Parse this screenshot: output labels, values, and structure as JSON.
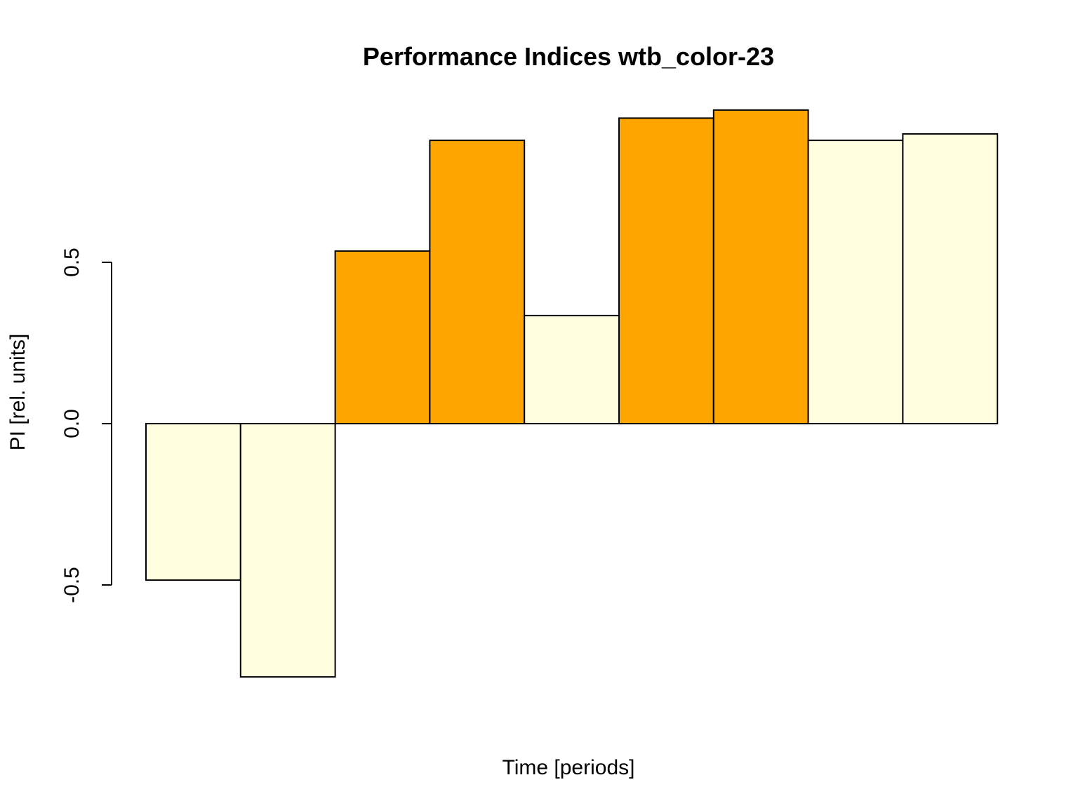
{
  "chart_data": {
    "type": "bar",
    "title": "Performance Indices wtb_color-23",
    "xlabel": "Time [periods]",
    "ylabel": "PI [rel. units]",
    "ylim": [
      -0.8,
      1.05
    ],
    "yticks": [
      -0.5,
      0.0,
      0.5
    ],
    "ytick_labels": [
      "-0.5",
      "0.0",
      "0.5"
    ],
    "grid": false,
    "legend": "none",
    "values": [
      -0.485,
      -0.785,
      0.535,
      0.878,
      0.335,
      0.947,
      0.972,
      0.878,
      0.898
    ],
    "colors": [
      "#ffffe0",
      "#ffffe0",
      "#ffa500",
      "#ffa500",
      "#ffffe0",
      "#ffa500",
      "#ffa500",
      "#ffffe0",
      "#ffffe0"
    ],
    "bar_border_color": "#000000"
  }
}
